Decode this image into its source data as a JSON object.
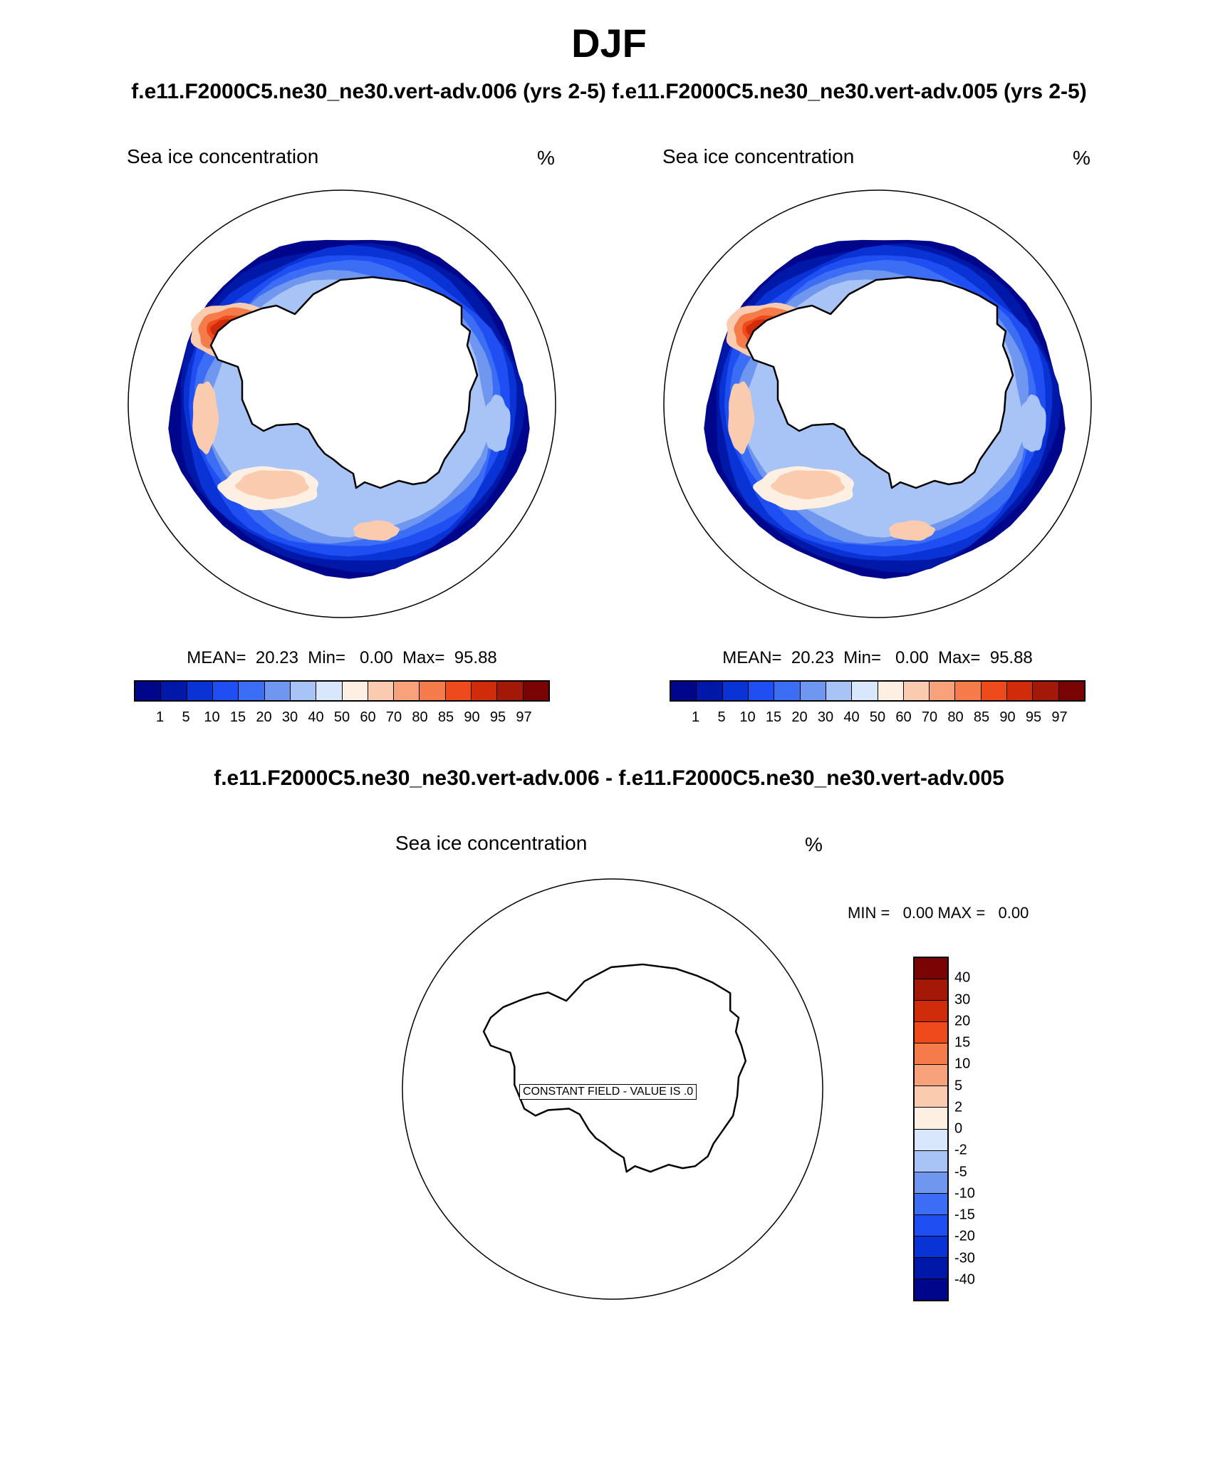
{
  "header": {
    "title": "DJF",
    "subtitle_left": "f.e11.F2000C5.ne30_ne30.vert-adv.006 (yrs 2-5)",
    "subtitle_right": "f.e11.F2000C5.ne30_ne30.vert-adv.005 (yrs 2-5)",
    "diff_title": "f.e11.F2000C5.ne30_ne30.vert-adv.006 - f.e11.F2000C5.ne30_ne30.vert-adv.005"
  },
  "panels": [
    {
      "label": "Sea ice concentration",
      "unit": "%",
      "stats": "MEAN=  20.23  Min=   0.00  Max=  95.88",
      "levels": [
        "1",
        "5",
        "10",
        "15",
        "20",
        "30",
        "40",
        "50",
        "60",
        "70",
        "80",
        "85",
        "90",
        "95",
        "97"
      ]
    },
    {
      "label": "Sea ice concentration",
      "unit": "%",
      "stats": "MEAN=  20.23  Min=   0.00  Max=  95.88",
      "levels": [
        "1",
        "5",
        "10",
        "15",
        "20",
        "30",
        "40",
        "50",
        "60",
        "70",
        "80",
        "85",
        "90",
        "95",
        "97"
      ]
    }
  ],
  "diff_panel": {
    "label": "Sea ice concentration",
    "unit": "%",
    "minmax": "MIN =   0.00 MAX =   0.00",
    "note": "CONSTANT FIELD - VALUE IS .0",
    "levels": [
      "40",
      "30",
      "20",
      "15",
      "10",
      "5",
      "2",
      "0",
      "-2",
      "-5",
      "-10",
      "-15",
      "-20",
      "-30",
      "-40"
    ]
  },
  "colors": {
    "main_scale": [
      "#00068b",
      "#0018a8",
      "#0a33d6",
      "#1f4ff2",
      "#3b6ef5",
      "#7097ef",
      "#a8c3f5",
      "#d8e7fb",
      "#fdefe1",
      "#fbcbb0",
      "#f8a27c",
      "#f57c4a",
      "#ee4a1c",
      "#d02b0b",
      "#a41808",
      "#7a0404"
    ],
    "diff_scale": [
      "#7a0404",
      "#a41808",
      "#d02b0b",
      "#ee4a1c",
      "#f57c4a",
      "#f8a27c",
      "#fbcbb0",
      "#fdefe1",
      "#d8e7fb",
      "#a8c3f5",
      "#7097ef",
      "#3b6ef5",
      "#1f4ff2",
      "#0a33d6",
      "#0018a8",
      "#00068b"
    ]
  }
}
